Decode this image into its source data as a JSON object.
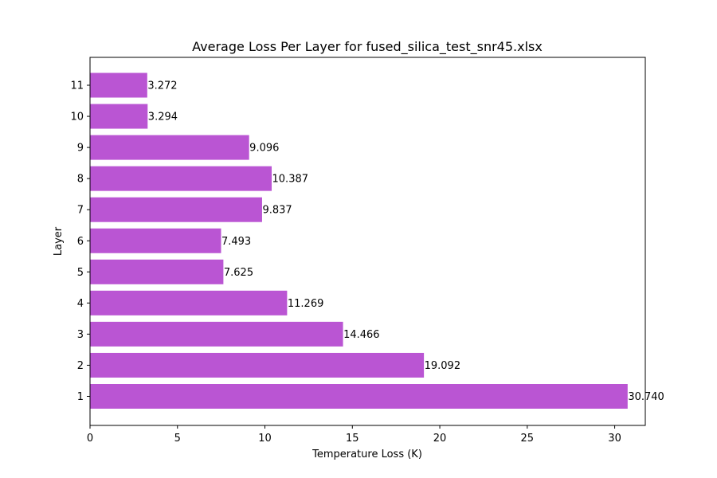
{
  "chart_data": {
    "type": "bar",
    "orientation": "horizontal",
    "title": "Average Loss Per Layer for fused_silica_test_snr45.xlsx",
    "xlabel": "Temperature Loss (K)",
    "ylabel": "Layer",
    "categories": [
      "1",
      "2",
      "3",
      "4",
      "5",
      "6",
      "7",
      "8",
      "9",
      "10",
      "11"
    ],
    "values": [
      30.74,
      19.092,
      14.466,
      11.269,
      7.625,
      7.493,
      9.837,
      10.387,
      9.096,
      3.294,
      3.272
    ],
    "value_labels": [
      "30.740",
      "19.092",
      "14.466",
      "11.269",
      "7.625",
      "7.493",
      "9.837",
      "10.387",
      "9.096",
      "3.294",
      "3.272"
    ],
    "xlim": [
      0,
      31.75
    ],
    "xticks": [
      0,
      5,
      10,
      15,
      20,
      25,
      30
    ],
    "bar_color": "#ba55d3",
    "grid": false,
    "legend": "none"
  }
}
